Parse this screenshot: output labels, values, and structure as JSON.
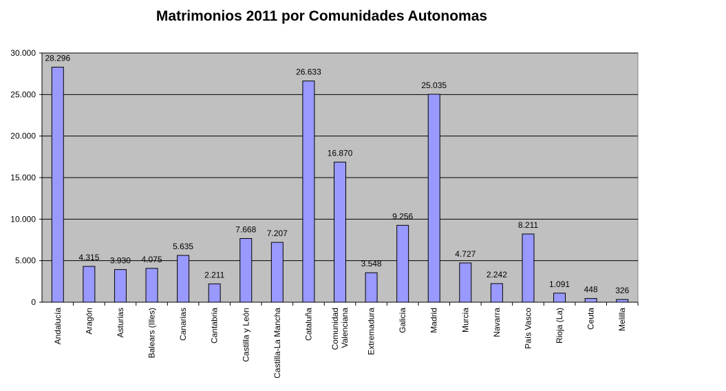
{
  "chart_data": {
    "type": "bar",
    "title": "Matrimonios 2011 por Comunidades Autonomas",
    "categories": [
      "Andalucía",
      "Aragón",
      "Asturias",
      "Balears (Illes)",
      "Canarias",
      "Cantabria",
      "Castilla y León",
      "Castilla-La Mancha",
      "Cataluña",
      "Comunidad Valenciana",
      "Extremadura",
      "Galicia",
      "Madrid",
      "Murcia",
      "Navarra",
      "País Vasco",
      "Rioja (La)",
      "Ceuta",
      "Melilla"
    ],
    "category_labels": [
      [
        "Andalucía"
      ],
      [
        "Aragón"
      ],
      [
        "Asturias"
      ],
      [
        "Balears (Illes)"
      ],
      [
        "Canarias"
      ],
      [
        "Cantabria"
      ],
      [
        "Castilla y León"
      ],
      [
        "Castilla-La Mancha"
      ],
      [
        "Cataluña"
      ],
      [
        "Comunidad",
        "Valenciana"
      ],
      [
        "Extremadura"
      ],
      [
        "Galicia"
      ],
      [
        "Madrid"
      ],
      [
        "Murcia"
      ],
      [
        "Navarra"
      ],
      [
        "País Vasco"
      ],
      [
        "Rioja (La)"
      ],
      [
        "Ceuta"
      ],
      [
        "Melilla"
      ]
    ],
    "values": [
      28296,
      4315,
      3930,
      4075,
      5635,
      2211,
      7668,
      7207,
      26633,
      16870,
      3548,
      9256,
      25035,
      4727,
      2242,
      8211,
      1091,
      448,
      326
    ],
    "value_labels": [
      "28.296",
      "4.315",
      "3.930",
      "4.075",
      "5.635",
      "2.211",
      "7.668",
      "7.207",
      "26.633",
      "16.870",
      "3.548",
      "9.256",
      "25.035",
      "4.727",
      "2.242",
      "8.211",
      "1.091",
      "448",
      "326"
    ],
    "y_ticks": [
      0,
      5000,
      10000,
      15000,
      20000,
      25000,
      30000
    ],
    "y_tick_labels": [
      "0",
      "5.000",
      "10.000",
      "15.000",
      "20.000",
      "25.000",
      "30.000"
    ],
    "ylim": [
      0,
      30000
    ],
    "grid": true,
    "legend": "none",
    "colors": {
      "bar": "#9999ff",
      "plot_bg": "#c0c0c0",
      "grid": "#000000"
    }
  }
}
